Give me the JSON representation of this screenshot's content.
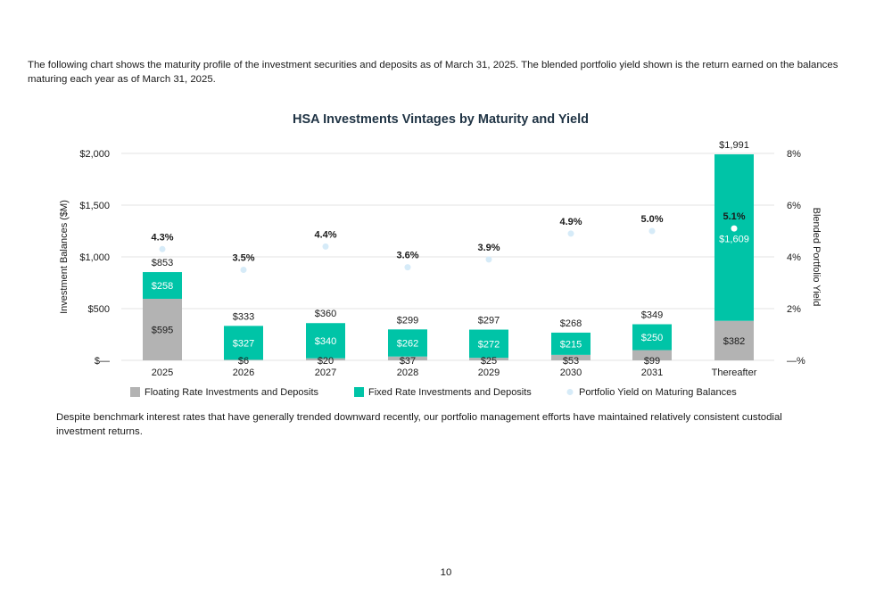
{
  "intro_text": "The following chart shows the maturity profile of the investment securities and deposits as of March 31, 2025. The blended portfolio yield shown is the return earned on the balances maturing each year as of March 31, 2025.",
  "outro_text": "Despite benchmark interest rates that have generally trended downward recently, our portfolio management efforts have maintained relatively consistent custodial investment returns.",
  "page_number": "10",
  "colors": {
    "floating": "#b3b3b3",
    "fixed": "#00c4a7",
    "yield": "#d6ebf8",
    "gridline": "#e3e3e3",
    "title": "#1f3344"
  },
  "chart_data": {
    "type": "bar",
    "stacked": true,
    "title": "HSA Investments Vintages by Maturity and Yield",
    "xlabel": "",
    "ylabel": "Investment Balances ($M)",
    "y2label": "Blended Portfolio Yield",
    "ylim": [
      0,
      2000
    ],
    "y2lim": [
      0,
      8
    ],
    "yticks": [
      "$—",
      "$500",
      "$1,000",
      "$1,500",
      "$2,000"
    ],
    "y2ticks": [
      "—%",
      "2%",
      "4%",
      "6%",
      "8%"
    ],
    "grid": true,
    "legend_position": "bottom",
    "categories": [
      "2025",
      "2026",
      "2027",
      "2028",
      "2029",
      "2030",
      "2031",
      "Thereafter"
    ],
    "series": [
      {
        "name": "Floating Rate Investments and Deposits",
        "values": [
          595,
          6,
          20,
          37,
          25,
          53,
          99,
          382
        ],
        "labels": [
          "$595",
          "$6",
          "$20",
          "$37",
          "$25",
          "$53",
          "$99",
          "$382"
        ]
      },
      {
        "name": "Fixed Rate Investments and Deposits",
        "values": [
          258,
          327,
          340,
          262,
          272,
          215,
          250,
          1609
        ],
        "labels": [
          "$258",
          "$327",
          "$340",
          "$262",
          "$272",
          "$215",
          "$250",
          "$1,609"
        ]
      }
    ],
    "totals": [
      853,
      333,
      360,
      299,
      297,
      268,
      349,
      1991
    ],
    "total_labels": [
      "$853",
      "$333",
      "$360",
      "$299",
      "$297",
      "$268",
      "$349",
      "$1,991"
    ],
    "yield_series": {
      "name": "Portfolio Yield on Maturing Balances",
      "values": [
        4.3,
        3.5,
        4.4,
        3.6,
        3.9,
        4.9,
        5.0,
        5.1
      ],
      "labels": [
        "4.3%",
        "3.5%",
        "4.4%",
        "3.6%",
        "3.9%",
        "4.9%",
        "5.0%",
        "5.1%"
      ]
    }
  }
}
